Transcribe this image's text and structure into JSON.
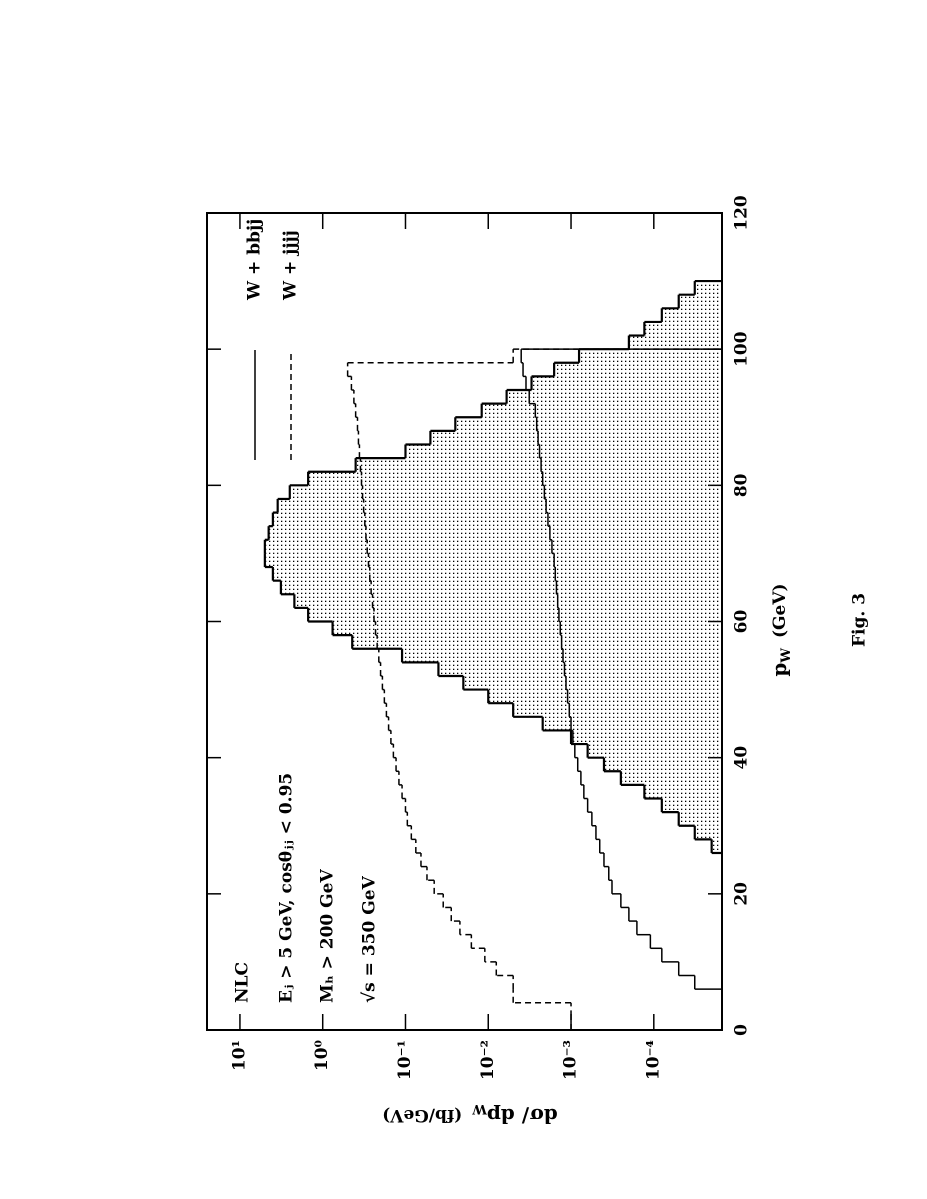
{
  "chart_data": {
    "type": "histogram",
    "x_label": {
      "main": "p",
      "sub": "W",
      "unit": "(GeV)"
    },
    "y_label": {
      "main": "dσ/ dp",
      "sub": "W",
      "unit": "(fb/GeV)"
    },
    "caption": "Fig. 3",
    "annotations": [
      "NLC",
      "Eⱼ > 5 GeV,  cosθⱼⱼ < 0.95",
      "Mₕ > 200 GeV",
      "√s = 350 GeV"
    ],
    "xlim": [
      0,
      120
    ],
    "xticks": [
      0,
      20,
      40,
      60,
      80,
      100,
      120
    ],
    "ylim": [
      1.5e-05,
      25
    ],
    "log_y": true,
    "yticks": [
      {
        "value": 10,
        "label": "10¹"
      },
      {
        "value": 1,
        "label": "10⁰"
      },
      {
        "value": 0.1,
        "label": "10⁻¹"
      },
      {
        "value": 0.01,
        "label": "10⁻²"
      },
      {
        "value": 0.001,
        "label": "10⁻³"
      },
      {
        "value": 0.0001,
        "label": "10⁻⁴"
      }
    ],
    "series": [
      {
        "style": "shaded",
        "color": "#000000",
        "bins": [
          26,
          28,
          30,
          32,
          34,
          36,
          38,
          40,
          42,
          44,
          46,
          48,
          50,
          52,
          54,
          56,
          58,
          60,
          62,
          64,
          66,
          68,
          70,
          72,
          74,
          76,
          78,
          80,
          82,
          84,
          86,
          88,
          90,
          92,
          94,
          96,
          98,
          100,
          102,
          104,
          106,
          108,
          110
        ],
        "values": [
          2e-05,
          3.2e-05,
          5e-05,
          8e-05,
          0.00013,
          0.00025,
          0.0004,
          0.00063,
          0.001,
          0.0022,
          0.005,
          0.01,
          0.02,
          0.04,
          0.11,
          0.44,
          0.76,
          1.5,
          2.2,
          3.2,
          4,
          5,
          5,
          4.5,
          4,
          3.5,
          2.5,
          1.5,
          0.4,
          0.1,
          0.05,
          0.025,
          0.012,
          0.006,
          0.003,
          0.0016,
          0.0008,
          0.0002,
          0.00013,
          8e-05,
          5e-05,
          3.2e-05
        ]
      },
      {
        "name": "W + bbjj",
        "style": "solid",
        "color": "#000000",
        "bins": [
          6,
          8,
          10,
          12,
          14,
          16,
          18,
          20,
          22,
          24,
          26,
          28,
          30,
          32,
          34,
          36,
          38,
          40,
          42,
          44,
          46,
          48,
          50,
          52,
          54,
          56,
          58,
          60,
          62,
          64,
          66,
          68,
          70,
          72,
          74,
          76,
          78,
          80,
          82,
          84,
          86,
          88,
          90,
          92,
          94,
          96,
          98,
          100
        ],
        "values": [
          3.2e-05,
          5e-05,
          8e-05,
          0.00011,
          0.00016,
          0.0002,
          0.00025,
          0.00032,
          0.00035,
          0.0004,
          0.00045,
          0.0005,
          0.00056,
          0.00063,
          0.0007,
          0.00076,
          0.00083,
          0.0009,
          0.00095,
          0.001,
          0.00105,
          0.0011,
          0.00115,
          0.0012,
          0.00125,
          0.0013,
          0.00135,
          0.0014,
          0.00145,
          0.0015,
          0.00155,
          0.0016,
          0.0017,
          0.0018,
          0.0019,
          0.002,
          0.0021,
          0.0022,
          0.0023,
          0.0024,
          0.0025,
          0.0026,
          0.0027,
          0.0032,
          0.0035,
          0.0038,
          0.004
        ]
      },
      {
        "name": "W + jjjj",
        "style": "dashed",
        "color": "#000000",
        "bins": [
          0,
          2,
          4,
          6,
          8,
          10,
          12,
          14,
          16,
          18,
          20,
          22,
          24,
          26,
          28,
          30,
          32,
          34,
          36,
          38,
          40,
          42,
          44,
          46,
          48,
          50,
          52,
          54,
          56,
          58,
          60,
          62,
          64,
          66,
          68,
          70,
          72,
          74,
          76,
          78,
          80,
          82,
          84,
          86,
          88,
          90,
          92,
          94,
          96,
          98,
          100
        ],
        "values": [
          0.001,
          0.001,
          0.005,
          0.005,
          0.008,
          0.011,
          0.016,
          0.022,
          0.028,
          0.035,
          0.045,
          0.055,
          0.065,
          0.075,
          0.085,
          0.095,
          0.1,
          0.11,
          0.12,
          0.13,
          0.14,
          0.15,
          0.16,
          0.17,
          0.18,
          0.19,
          0.2,
          0.21,
          0.22,
          0.23,
          0.24,
          0.25,
          0.26,
          0.27,
          0.28,
          0.29,
          0.3,
          0.31,
          0.32,
          0.33,
          0.34,
          0.35,
          0.36,
          0.37,
          0.38,
          0.4,
          0.42,
          0.45,
          0.5,
          0.005
        ]
      }
    ]
  }
}
